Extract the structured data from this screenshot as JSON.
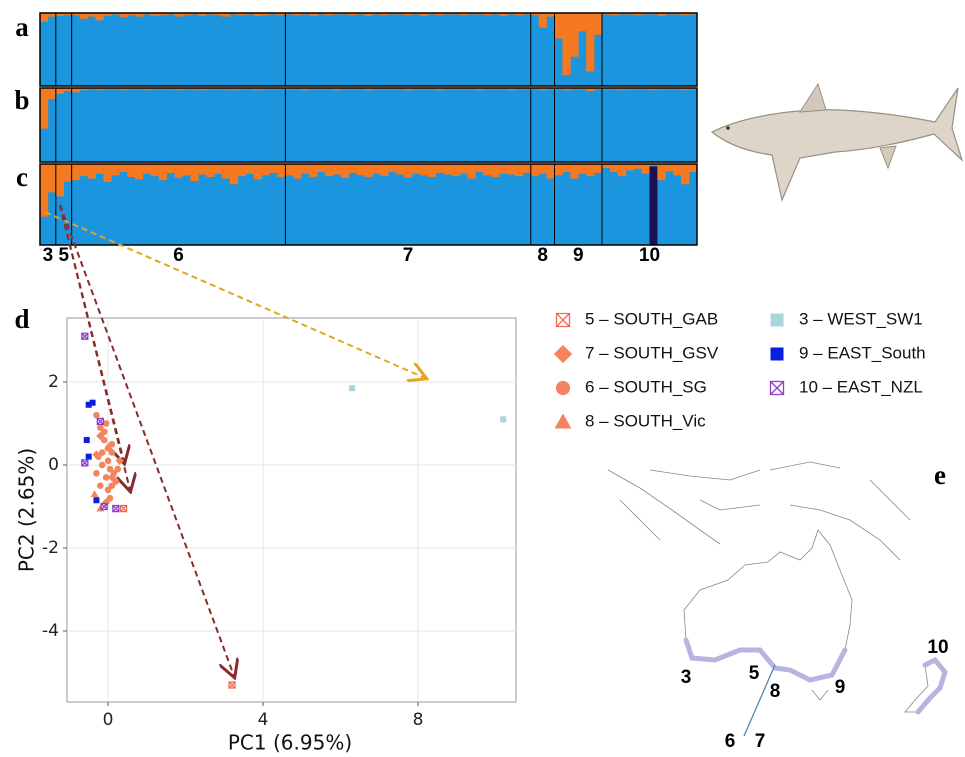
{
  "chart_data": [
    {
      "type": "structure",
      "populations": [
        "3",
        "5",
        "6",
        "7",
        "8",
        "9",
        "10"
      ],
      "colors": [
        "#f47920",
        "#1b95dd",
        "#1c0f52"
      ],
      "panels": [
        {
          "label": "a",
          "values": [
            [
              0.12,
              0.05
            ],
            [
              0.04,
              0.03
            ],
            [
              0.03,
              0.08,
              0.05,
              0.1,
              0.04,
              0.02,
              0.06,
              0.03,
              0.05,
              0.02,
              0.04,
              0.03,
              0.02,
              0.05,
              0.03,
              0.02,
              0.04,
              0.02,
              0.03,
              0.05,
              0.02,
              0.03,
              0.02,
              0.04,
              0.03,
              0.02,
              0.03
            ],
            [
              0.02,
              0.03,
              0.02,
              0.04,
              0.02,
              0.03,
              0.02,
              0.02,
              0.03,
              0.02,
              0.04,
              0.02,
              0.03,
              0.02,
              0.02,
              0.03,
              0.02,
              0.04,
              0.02,
              0.03,
              0.02,
              0.02,
              0.03,
              0.02,
              0.02,
              0.03,
              0.02,
              0.04,
              0.02,
              0.03,
              0.02
            ],
            [
              0.03,
              0.2,
              0.05
            ],
            [
              0.35,
              0.85,
              0.6,
              0.25,
              0.8,
              0.3
            ],
            [
              0.02,
              0.03,
              0.02,
              0.02,
              0.03,
              0.02,
              0.02,
              0.04,
              0.02,
              0.02,
              0.03,
              0.02
            ]
          ]
        },
        {
          "label": "b",
          "values": [
            [
              0.55,
              0.15
            ],
            [
              0.08,
              0.04
            ],
            [
              0.06,
              0.03,
              0.02,
              0.03,
              0.02,
              0.02,
              0.03,
              0.02,
              0.02,
              0.03,
              0.02,
              0.02,
              0.02,
              0.03,
              0.02,
              0.02,
              0.03,
              0.02,
              0.02,
              0.02,
              0.03,
              0.02,
              0.02,
              0.03,
              0.02,
              0.02,
              0.02
            ],
            [
              0.02,
              0.02,
              0.03,
              0.02,
              0.02,
              0.02,
              0.03,
              0.02,
              0.02,
              0.02,
              0.03,
              0.02,
              0.02,
              0.02,
              0.02,
              0.03,
              0.02,
              0.02,
              0.02,
              0.03,
              0.02,
              0.02,
              0.02,
              0.02,
              0.03,
              0.02,
              0.02,
              0.02,
              0.03,
              0.02,
              0.02
            ],
            [
              0.02,
              0.03,
              0.02
            ],
            [
              0.02,
              0.03,
              0.02,
              0.02,
              0.04,
              0.02
            ],
            [
              0.02,
              0.02,
              0.03,
              0.02,
              0.02,
              0.02,
              0.03,
              0.02,
              0.02,
              0.02,
              0.03,
              0.02
            ]
          ]
        },
        {
          "label": "c",
          "values": [
            [
              0.65,
              0.35
            ],
            [
              0.4,
              0.22
            ],
            [
              0.2,
              0.15,
              0.18,
              0.12,
              0.22,
              0.14,
              0.1,
              0.16,
              0.19,
              0.12,
              0.15,
              0.2,
              0.11,
              0.17,
              0.14,
              0.21,
              0.13,
              0.16,
              0.12,
              0.18,
              0.25,
              0.15,
              0.12,
              0.19,
              0.14,
              0.11,
              0.16
            ],
            [
              0.14,
              0.18,
              0.12,
              0.16,
              0.1,
              0.15,
              0.13,
              0.17,
              0.11,
              0.14,
              0.16,
              0.12,
              0.15,
              0.1,
              0.13,
              0.17,
              0.12,
              0.14,
              0.16,
              0.11,
              0.13,
              0.15,
              0.12,
              0.18,
              0.1,
              0.14,
              0.16,
              0.12,
              0.13,
              0.15,
              0.11
            ],
            [
              0.15,
              0.12,
              0.18
            ],
            [
              0.14,
              0.1,
              0.18,
              0.12,
              0.15,
              0.11
            ],
            [
              0.05,
              0.1,
              0.15,
              0.08,
              0.06,
              0.12,
              0.02,
              0.2,
              0.09,
              0.14,
              0.25,
              0.1
            ]
          ],
          "third": [
            null,
            null,
            null,
            null,
            null,
            null,
            [
              0,
              0,
              0,
              0,
              0,
              0,
              0.97,
              0,
              0,
              0,
              0,
              0
            ]
          ]
        }
      ]
    },
    {
      "type": "scatter",
      "label": "d",
      "xlabel": "PC1 (6.95%)",
      "ylabel": "PC2 (2.65%)",
      "xlim": [
        -1.06,
        10.53
      ],
      "ylim": [
        -5.71,
        3.54
      ],
      "xticks": [
        0,
        4,
        8
      ],
      "yticks": [
        -4,
        -2,
        0,
        2
      ],
      "grid": true,
      "series": [
        {
          "name": "5 – SOUTH_GAB",
          "color": "#f26b4f",
          "marker": "boxx",
          "x": [
            3.2,
            0.4
          ],
          "y": [
            -5.3,
            -1.05
          ]
        },
        {
          "name": "7 – SOUTH_GSV",
          "color": "#f4845f",
          "marker": "diamond",
          "x": [
            -0.2,
            0.1,
            -0.05,
            0.3,
            -0.3
          ],
          "y": [
            0.7,
            -0.3,
            -0.9,
            0.1,
            0.25
          ]
        },
        {
          "name": "6 – SOUTH_SG",
          "color": "#f4845f",
          "marker": "circle",
          "x": [
            -0.3,
            -0.2,
            -0.1,
            0,
            0.1,
            -0.25,
            -0.15,
            0.05,
            0.15,
            -0.05,
            -0.2,
            0,
            0.2,
            -0.1,
            0.1,
            -0.3,
            0.05,
            -0.15,
            0.25,
            0.0,
            -0.05,
            0.1
          ],
          "y": [
            1.2,
            0.9,
            0.6,
            0.4,
            0.3,
            0.2,
            0,
            -0.1,
            -0.2,
            -0.3,
            -0.5,
            -0.6,
            -0.4,
            0.8,
            0.5,
            -0.2,
            -0.8,
            0.3,
            -0.1,
            0.1,
            1.0,
            -0.5
          ]
        },
        {
          "name": "8 – SOUTH_Vic",
          "color": "#f4845f",
          "marker": "triangle",
          "x": [
            -0.2,
            0.0,
            -0.35
          ],
          "y": [
            -1.05,
            0.45,
            -0.7
          ]
        },
        {
          "name": "3 – WEST_SW1",
          "color": "#a8d5dc",
          "marker": "square",
          "x": [
            6.3,
            10.2
          ],
          "y": [
            1.85,
            1.1
          ]
        },
        {
          "name": "9 – EAST_South",
          "color": "#0a1ee0",
          "marker": "square",
          "x": [
            -0.5,
            -0.4,
            -0.55,
            -0.5,
            -0.3
          ],
          "y": [
            1.45,
            1.5,
            0.6,
            0.2,
            -0.85
          ]
        },
        {
          "name": "10 – EAST_NZL",
          "color": "#8a3fd0",
          "marker": "boxx",
          "x": [
            -0.6,
            -0.6,
            -0.1,
            0.2,
            -0.2
          ],
          "y": [
            3.1,
            0.05,
            -1.0,
            -1.05,
            1.05
          ]
        }
      ]
    },
    {
      "type": "map",
      "label": "e",
      "labels": [
        "3",
        "5",
        "8",
        "9",
        "10",
        "6",
        "7"
      ]
    }
  ]
}
